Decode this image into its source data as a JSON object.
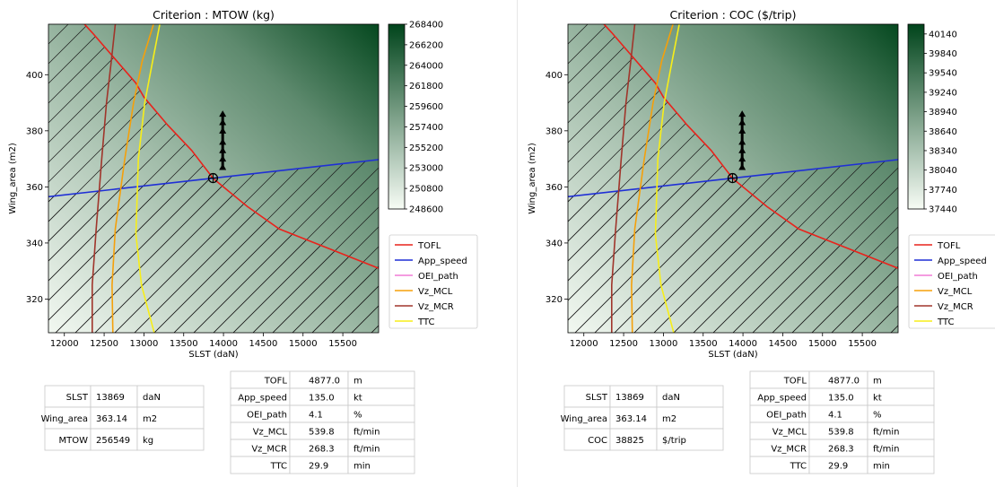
{
  "chart_data": [
    {
      "type": "heatmap",
      "title": "Criterion : MTOW (kg)",
      "xlabel": "SLST (daN)",
      "ylabel": "Wing_area (m2)",
      "xlim": [
        11800,
        15950
      ],
      "ylim": [
        308,
        418
      ],
      "xticks": [
        "12000",
        "12500",
        "13000",
        "13500",
        "14000",
        "14500",
        "15000",
        "15500"
      ],
      "yticks": [
        "320",
        "340",
        "360",
        "380",
        "400"
      ],
      "colorbar": {
        "min": 248600,
        "max": 268400,
        "ticks": [
          "268400",
          "266200",
          "264000",
          "261800",
          "259600",
          "257400",
          "255200",
          "253000",
          "250800",
          "248600"
        ]
      },
      "series": [
        {
          "name": "TOFL",
          "color": "#e8231c",
          "x": [
            11800,
            12350,
            12900,
            13000,
            13300,
            13600,
            13870,
            14300,
            14700,
            15950
          ],
          "y": [
            432,
            415,
            397,
            392,
            382,
            373,
            363,
            353,
            345,
            331
          ]
        },
        {
          "name": "App_speed",
          "color": "#1f2fd6",
          "x": [
            11800,
            13869,
            15950
          ],
          "y": [
            356.5,
            363.1,
            369.7
          ]
        },
        {
          "name": "OEI_path",
          "color": "#f07cd5",
          "x": [],
          "y": []
        },
        {
          "name": "Vz_MCL",
          "color": "#f5a00a",
          "x": [
            12610,
            12600,
            12640,
            12760,
            12870,
            12980,
            13120
          ],
          "y": [
            308,
            325,
            345,
            370,
            390,
            405,
            418
          ]
        },
        {
          "name": "Vz_MCR",
          "color": "#a0352b",
          "x": [
            12350,
            12350,
            12400,
            12470,
            12530,
            12590,
            12640
          ],
          "y": [
            308,
            325,
            345,
            370,
            390,
            405,
            418
          ]
        },
        {
          "name": "TTC",
          "color": "#f7ee19",
          "x": [
            13130,
            12970,
            12900,
            12930,
            13010,
            13110,
            13200
          ],
          "y": [
            308,
            325,
            343,
            370,
            390,
            405,
            418
          ]
        }
      ],
      "optimum_point": {
        "x": 13869,
        "y": 363.14
      },
      "feasibility_markers": {
        "x": 13990,
        "y": [
          367,
          370,
          373,
          376,
          380,
          383,
          386
        ]
      },
      "legend": [
        "TOFL",
        "App_speed",
        "OEI_path",
        "Vz_MCL",
        "Vz_MCR",
        "TTC"
      ],
      "legend_position": "right",
      "design_table": [
        [
          "SLST",
          "13869",
          "daN"
        ],
        [
          "Wing_area",
          "363.14",
          "m2"
        ],
        [
          "MTOW",
          "256549",
          "kg"
        ]
      ],
      "constraint_table": [
        [
          "TOFL",
          "4877.0",
          "m"
        ],
        [
          "App_speed",
          "135.0",
          "kt"
        ],
        [
          "OEI_path",
          "4.1",
          "%"
        ],
        [
          "Vz_MCL",
          "539.8",
          "ft/min"
        ],
        [
          "Vz_MCR",
          "268.3",
          "ft/min"
        ],
        [
          "TTC",
          "29.9",
          "min"
        ]
      ]
    },
    {
      "type": "heatmap",
      "title": "Criterion : COC ($/trip)",
      "xlabel": "SLST (daN)",
      "ylabel": "Wing_area (m2)",
      "xlim": [
        11800,
        15950
      ],
      "ylim": [
        308,
        418
      ],
      "xticks": [
        "12000",
        "12500",
        "13000",
        "13500",
        "14000",
        "14500",
        "15000",
        "15500"
      ],
      "yticks": [
        "320",
        "340",
        "360",
        "380",
        "400"
      ],
      "colorbar": {
        "min": 37440,
        "max": 40290,
        "ticks": [
          "40140",
          "39840",
          "39540",
          "39240",
          "38940",
          "38640",
          "38340",
          "38040",
          "37740",
          "37440"
        ]
      },
      "series": [
        {
          "name": "TOFL",
          "color": "#e8231c",
          "x": [
            11800,
            12350,
            12900,
            13000,
            13300,
            13600,
            13870,
            14300,
            14700,
            15950
          ],
          "y": [
            432,
            415,
            397,
            392,
            382,
            373,
            363,
            353,
            345,
            331
          ]
        },
        {
          "name": "App_speed",
          "color": "#1f2fd6",
          "x": [
            11800,
            13869,
            15950
          ],
          "y": [
            356.5,
            363.1,
            369.7
          ]
        },
        {
          "name": "OEI_path",
          "color": "#f07cd5",
          "x": [],
          "y": []
        },
        {
          "name": "Vz_MCL",
          "color": "#f5a00a",
          "x": [
            12610,
            12600,
            12640,
            12760,
            12870,
            12980,
            13120
          ],
          "y": [
            308,
            325,
            345,
            370,
            390,
            405,
            418
          ]
        },
        {
          "name": "Vz_MCR",
          "color": "#a0352b",
          "x": [
            12350,
            12350,
            12400,
            12470,
            12530,
            12590,
            12640
          ],
          "y": [
            308,
            325,
            345,
            370,
            390,
            405,
            418
          ]
        },
        {
          "name": "TTC",
          "color": "#f7ee19",
          "x": [
            13130,
            12970,
            12900,
            12930,
            13010,
            13110,
            13200
          ],
          "y": [
            308,
            325,
            343,
            370,
            390,
            405,
            418
          ]
        }
      ],
      "optimum_point": {
        "x": 13869,
        "y": 363.14
      },
      "feasibility_markers": {
        "x": 13990,
        "y": [
          367,
          370,
          373,
          376,
          380,
          383,
          386
        ]
      },
      "legend": [
        "TOFL",
        "App_speed",
        "OEI_path",
        "Vz_MCL",
        "Vz_MCR",
        "TTC"
      ],
      "legend_position": "right",
      "design_table": [
        [
          "SLST",
          "13869",
          "daN"
        ],
        [
          "Wing_area",
          "363.14",
          "m2"
        ],
        [
          "COC",
          "38825",
          "$/trip"
        ]
      ],
      "constraint_table": [
        [
          "TOFL",
          "4877.0",
          "m"
        ],
        [
          "App_speed",
          "135.0",
          "kt"
        ],
        [
          "OEI_path",
          "4.1",
          "%"
        ],
        [
          "Vz_MCL",
          "539.8",
          "ft/min"
        ],
        [
          "Vz_MCR",
          "268.3",
          "ft/min"
        ],
        [
          "TTC",
          "29.9",
          "min"
        ]
      ]
    }
  ],
  "colors": {
    "heat_low": "#f7fcf5",
    "heat_high": "#00441b",
    "axis": "#000000",
    "table_border": "#c8c8c8",
    "divider": "#e6e6e6"
  }
}
